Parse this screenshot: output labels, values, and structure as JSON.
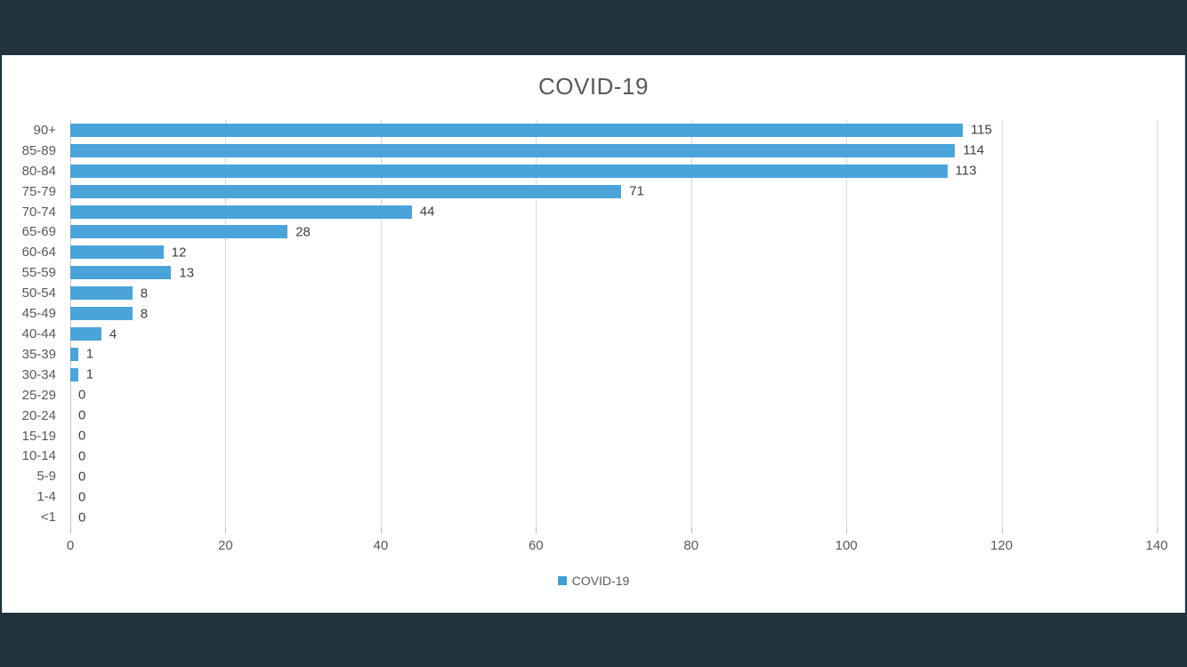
{
  "page": {
    "band_color": "#20333f",
    "panel_color": "#ffffff"
  },
  "chart_data": {
    "type": "bar",
    "orientation": "horizontal",
    "title": "COVID-19",
    "categories": [
      "90+",
      "85-89",
      "80-84",
      "75-79",
      "70-74",
      "65-69",
      "60-64",
      "55-59",
      "50-54",
      "45-49",
      "40-44",
      "35-39",
      "30-34",
      "25-29",
      "20-24",
      "15-19",
      "10-14",
      "5-9",
      "1-4",
      "<1"
    ],
    "values": [
      115,
      114,
      113,
      71,
      44,
      28,
      12,
      13,
      8,
      8,
      4,
      1,
      1,
      0,
      0,
      0,
      0,
      0,
      0,
      0
    ],
    "data_labels_visible": true,
    "xlabel": "",
    "ylabel": "",
    "xlim": [
      0,
      140
    ],
    "x_ticks": [
      0,
      20,
      40,
      60,
      80,
      100,
      120,
      140
    ],
    "grid": true,
    "legend": {
      "label": "COVID-19",
      "position": "bottom"
    },
    "colors": {
      "bar": "#4aa4da",
      "legend_marker": "#3ca0d6",
      "title": "#595959",
      "axis_labels": "#595959",
      "value_labels": "#404040",
      "gridline": "#d9d9d9",
      "axis_line": "#c3c3c3",
      "tick": "#bfbfbf"
    }
  }
}
